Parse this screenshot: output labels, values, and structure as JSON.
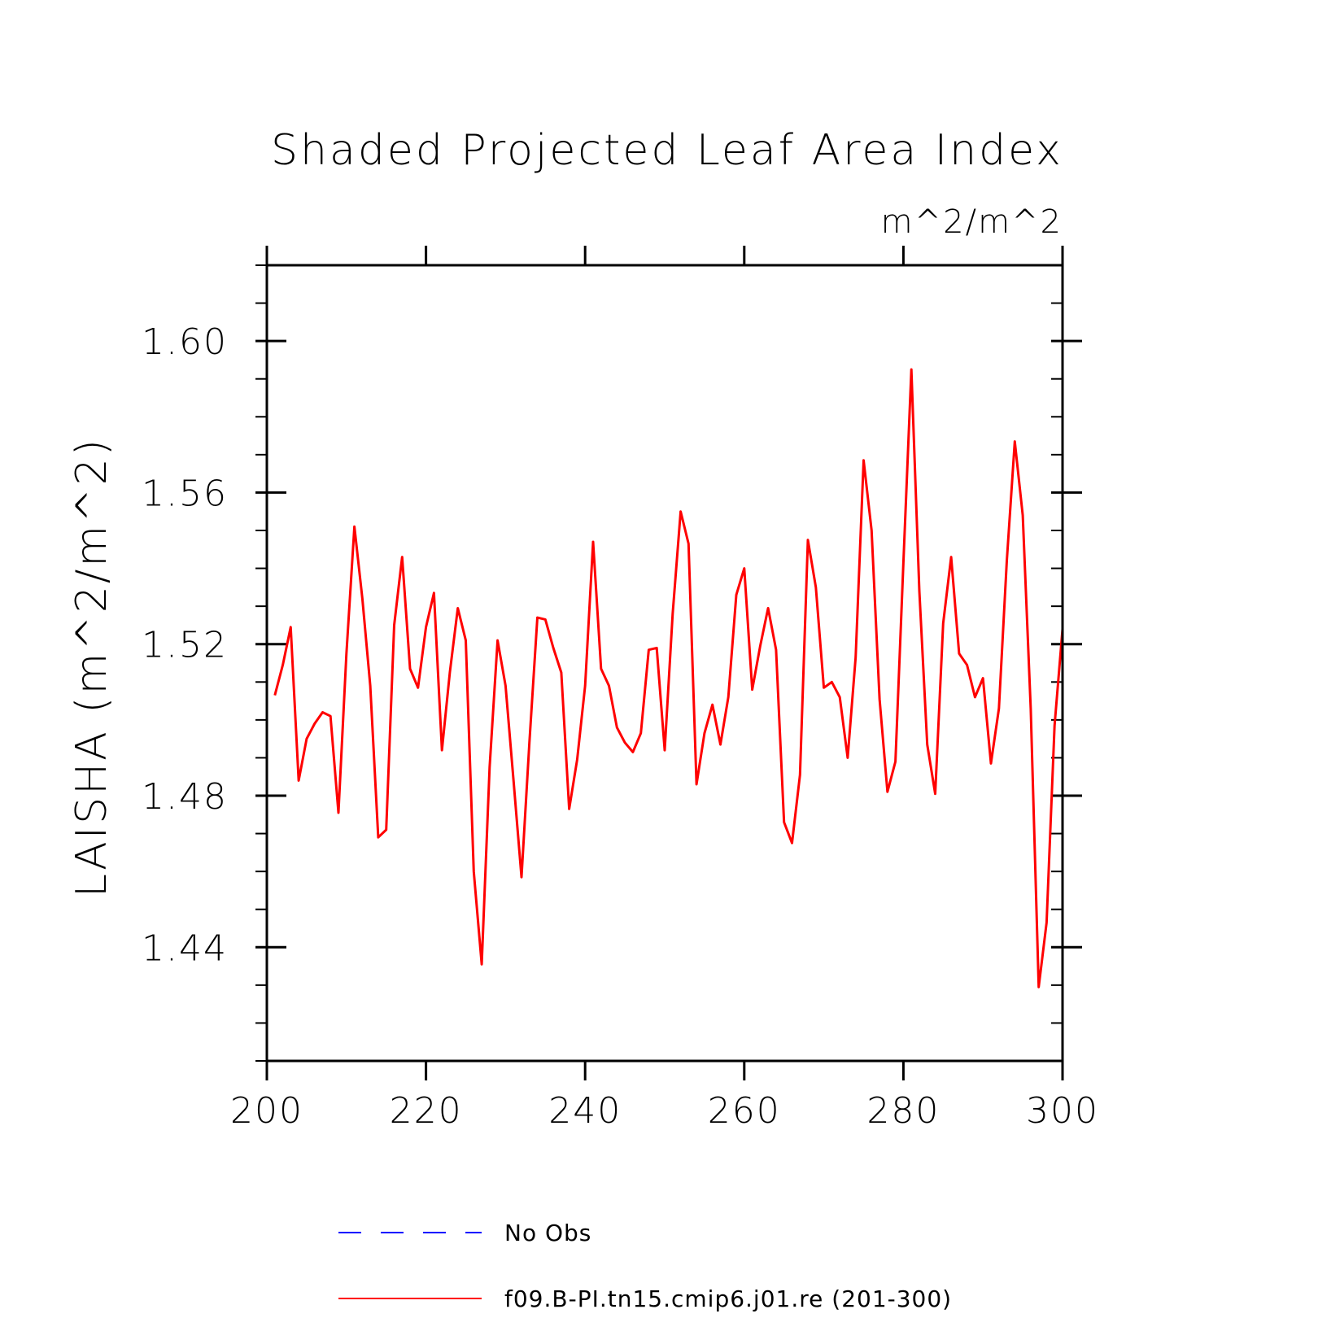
{
  "chart_data": {
    "type": "line",
    "title": "Shaded Projected Leaf Area Index",
    "units": "m^2/m^2",
    "ylabel": "LAISHA   (m^2/m^2)",
    "xlabel": "",
    "xlim": [
      200,
      300
    ],
    "ylim": [
      1.41,
      1.62
    ],
    "x_ticks": [
      200,
      220,
      240,
      260,
      280,
      300
    ],
    "x_tick_labels": [
      "200",
      "220",
      "240",
      "260",
      "280",
      "300"
    ],
    "y_ticks": [
      1.44,
      1.48,
      1.52,
      1.56,
      1.6
    ],
    "y_tick_labels": [
      "1.44",
      "1.48",
      "1.52",
      "1.56",
      "1.60"
    ],
    "grid": false,
    "legend_placement": "bottom",
    "series": [
      {
        "name": "No Obs",
        "color": "#0000ff",
        "dash": "dashed",
        "x": [],
        "y": []
      },
      {
        "name": "f09.B-PI.tn15.cmip6.j01.re (201-300)",
        "color": "#ff0000",
        "dash": "solid",
        "x": [
          201,
          202,
          203,
          204,
          205,
          206,
          207,
          208,
          209,
          210,
          211,
          212,
          213,
          214,
          215,
          216,
          217,
          218,
          219,
          220,
          221,
          222,
          223,
          224,
          225,
          226,
          227,
          228,
          229,
          230,
          231,
          232,
          233,
          234,
          235,
          236,
          237,
          238,
          239,
          240,
          241,
          242,
          243,
          244,
          245,
          246,
          247,
          248,
          249,
          250,
          251,
          252,
          253,
          254,
          255,
          256,
          257,
          258,
          259,
          260,
          261,
          262,
          263,
          264,
          265,
          266,
          267,
          268,
          269,
          270,
          271,
          272,
          273,
          274,
          275,
          276,
          277,
          278,
          279,
          280,
          281,
          282,
          283,
          284,
          285,
          286,
          287,
          288,
          289,
          290,
          291,
          292,
          293,
          294,
          295,
          296,
          297,
          298,
          299,
          300
        ],
        "y": [
          1.5065,
          1.5145,
          1.5245,
          1.484,
          1.495,
          1.499,
          1.502,
          1.501,
          1.4755,
          1.5175,
          1.551,
          1.532,
          1.509,
          1.469,
          1.471,
          1.525,
          1.543,
          1.5135,
          1.5085,
          1.5245,
          1.5335,
          1.492,
          1.5125,
          1.5295,
          1.521,
          1.46,
          1.4355,
          1.4875,
          1.521,
          1.509,
          1.484,
          1.4585,
          1.494,
          1.527,
          1.5265,
          1.519,
          1.5125,
          1.4765,
          1.4895,
          1.509,
          1.547,
          1.5135,
          1.509,
          1.498,
          1.494,
          1.4915,
          1.4965,
          1.5185,
          1.519,
          1.492,
          1.528,
          1.555,
          1.5465,
          1.483,
          1.4965,
          1.504,
          1.4935,
          1.506,
          1.533,
          1.54,
          1.508,
          1.5195,
          1.5295,
          1.5185,
          1.473,
          1.4675,
          1.4855,
          1.5475,
          1.535,
          1.5085,
          1.51,
          1.506,
          1.49,
          1.5165,
          1.5685,
          1.55,
          1.5055,
          1.481,
          1.489,
          1.5415,
          1.5925,
          1.534,
          1.4935,
          1.4805,
          1.5255,
          1.543,
          1.5175,
          1.5145,
          1.506,
          1.511,
          1.4885,
          1.503,
          1.542,
          1.5735,
          1.554,
          1.503,
          1.4295,
          1.4465,
          1.4985,
          1.524
        ]
      }
    ]
  }
}
